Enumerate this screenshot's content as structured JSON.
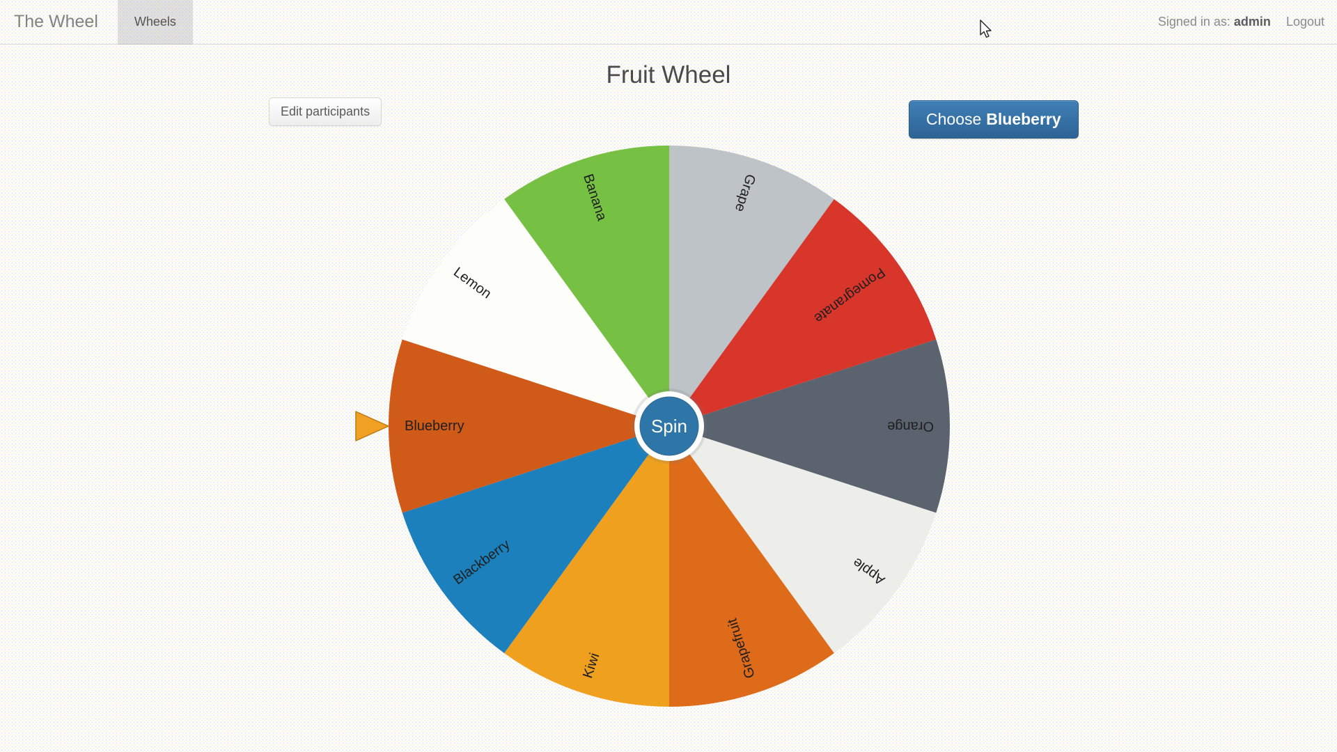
{
  "navbar": {
    "brand": "The Wheel",
    "tab_wheels": "Wheels",
    "signed_in_prefix": "Signed in as:",
    "username": "admin",
    "logout_label": "Logout"
  },
  "page": {
    "title": "Fruit Wheel",
    "edit_participants_label": "Edit participants",
    "choose_button": {
      "prefix": "Choose",
      "target": "Blueberry",
      "color": "#2d6396"
    }
  },
  "wheel": {
    "spin_label": "Spin",
    "hub_color": "#2e75a8",
    "pointer": {
      "color": "#f0a124",
      "points_at": "Blueberry"
    },
    "segments": [
      {
        "name": "Grape",
        "color": "#bdc3c7"
      },
      {
        "name": "Pomegranate",
        "color": "#d8352b"
      },
      {
        "name": "Orange",
        "color": "#5a636e"
      },
      {
        "name": "Apple",
        "color": "#edeeea"
      },
      {
        "name": "Grapefruit",
        "color": "#dd6b1a"
      },
      {
        "name": "Kiwi",
        "color": "#f0a01f"
      },
      {
        "name": "Blackberry",
        "color": "#1b80bc"
      },
      {
        "name": "Blueberry",
        "color": "#d05a18"
      },
      {
        "name": "Lemon",
        "color": "#fdfdfa"
      },
      {
        "name": "Banana",
        "color": "#76c043"
      }
    ]
  }
}
